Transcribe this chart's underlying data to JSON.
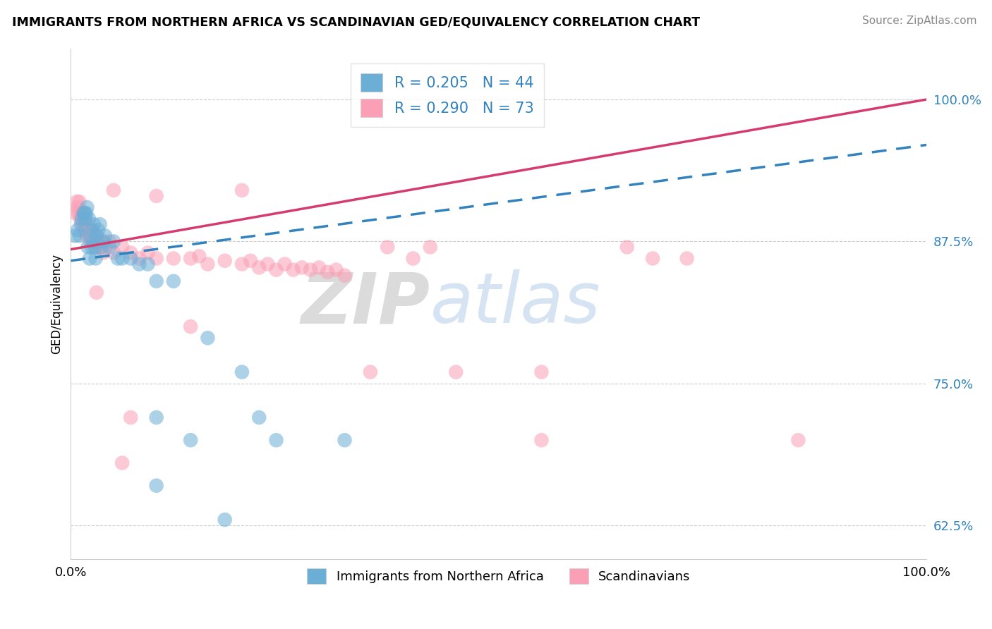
{
  "title": "IMMIGRANTS FROM NORTHERN AFRICA VS SCANDINAVIAN GED/EQUIVALENCY CORRELATION CHART",
  "source": "Source: ZipAtlas.com",
  "ylabel": "GED/Equivalency",
  "ytick_vals": [
    0.625,
    0.75,
    0.875,
    1.0
  ],
  "ytick_labels": [
    "62.5%",
    "75.0%",
    "87.5%",
    "100.0%"
  ],
  "xlim": [
    0,
    1.0
  ],
  "ylim": [
    0.595,
    1.045
  ],
  "color_blue": "#6baed6",
  "color_pink": "#fa9fb5",
  "color_blue_line": "#3182bd",
  "color_pink_line": "#d63b6e",
  "color_blue_text": "#3182bd",
  "blue_line_start": 0.858,
  "blue_line_end": 0.96,
  "pink_line_start": 0.868,
  "pink_line_end": 1.0,
  "blue_x": [
    0.005,
    0.008,
    0.01,
    0.012,
    0.013,
    0.015,
    0.016,
    0.017,
    0.018,
    0.019,
    0.02,
    0.021,
    0.022,
    0.023,
    0.024,
    0.025,
    0.026,
    0.027,
    0.028,
    0.029,
    0.03,
    0.032,
    0.034,
    0.036,
    0.038,
    0.04,
    0.045,
    0.05,
    0.055,
    0.06,
    0.07,
    0.08,
    0.09,
    0.1,
    0.12,
    0.16,
    0.2,
    0.22,
    0.24,
    0.32,
    0.1,
    0.14,
    0.1,
    0.18
  ],
  "blue_y": [
    0.88,
    0.885,
    0.88,
    0.89,
    0.895,
    0.9,
    0.9,
    0.895,
    0.9,
    0.905,
    0.87,
    0.895,
    0.86,
    0.88,
    0.87,
    0.885,
    0.875,
    0.89,
    0.87,
    0.86,
    0.88,
    0.885,
    0.89,
    0.87,
    0.875,
    0.88,
    0.87,
    0.875,
    0.86,
    0.86,
    0.86,
    0.855,
    0.855,
    0.84,
    0.84,
    0.79,
    0.76,
    0.72,
    0.7,
    0.7,
    0.72,
    0.7,
    0.66,
    0.63
  ],
  "pink_x": [
    0.005,
    0.007,
    0.008,
    0.009,
    0.01,
    0.011,
    0.012,
    0.013,
    0.014,
    0.015,
    0.016,
    0.017,
    0.018,
    0.019,
    0.02,
    0.021,
    0.022,
    0.023,
    0.024,
    0.025,
    0.026,
    0.027,
    0.028,
    0.029,
    0.03,
    0.032,
    0.034,
    0.036,
    0.038,
    0.04,
    0.045,
    0.05,
    0.06,
    0.07,
    0.08,
    0.09,
    0.1,
    0.12,
    0.14,
    0.15,
    0.16,
    0.18,
    0.2,
    0.21,
    0.22,
    0.23,
    0.24,
    0.25,
    0.26,
    0.27,
    0.28,
    0.29,
    0.3,
    0.31,
    0.32,
    0.05,
    0.1,
    0.2,
    0.37,
    0.4,
    0.42,
    0.55,
    0.65,
    0.68,
    0.55,
    0.72,
    0.85,
    0.03,
    0.14,
    0.35,
    0.45,
    0.06,
    0.07
  ],
  "pink_y": [
    0.9,
    0.91,
    0.905,
    0.9,
    0.91,
    0.895,
    0.9,
    0.895,
    0.89,
    0.9,
    0.885,
    0.89,
    0.885,
    0.88,
    0.89,
    0.88,
    0.885,
    0.875,
    0.885,
    0.88,
    0.875,
    0.88,
    0.875,
    0.87,
    0.88,
    0.875,
    0.87,
    0.875,
    0.865,
    0.87,
    0.875,
    0.865,
    0.87,
    0.865,
    0.86,
    0.865,
    0.86,
    0.86,
    0.86,
    0.862,
    0.855,
    0.858,
    0.855,
    0.858,
    0.852,
    0.855,
    0.85,
    0.855,
    0.85,
    0.852,
    0.85,
    0.852,
    0.848,
    0.85,
    0.845,
    0.92,
    0.915,
    0.92,
    0.87,
    0.86,
    0.87,
    0.76,
    0.87,
    0.86,
    0.7,
    0.86,
    0.7,
    0.83,
    0.8,
    0.76,
    0.76,
    0.68,
    0.72
  ]
}
